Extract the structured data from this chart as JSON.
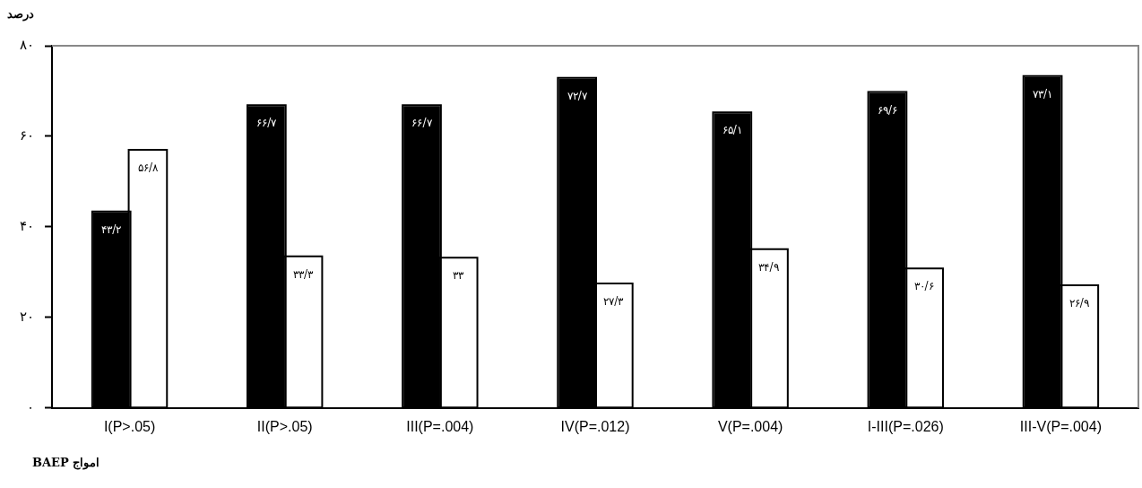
{
  "chart_data": {
    "type": "bar",
    "ylabel": "درصد",
    "xlabel": "امواج BAEP",
    "categories": [
      "I(P>.05)",
      "II(P>.05)",
      "III(P=.004)",
      "IV(P=.012)",
      "V(P=.004)",
      "I-III(P=.026)",
      "III-V(P=.004)"
    ],
    "series": [
      {
        "color": "#000000",
        "values": [
          43.2,
          66.7,
          66.7,
          72.7,
          65.1,
          69.6,
          73.1
        ],
        "value_labels": [
          "۴۳/۲",
          "۶۶/۷",
          "۶۶/۷",
          "۷۲/۷",
          "۶۵/۱",
          "۶۹/۶",
          "۷۳/۱"
        ]
      },
      {
        "color": "#ffffff",
        "values": [
          56.8,
          33.3,
          33,
          27.3,
          34.9,
          30.6,
          26.9
        ],
        "value_labels": [
          "۵۶/۸",
          "۳۳/۳",
          "۳۳",
          "۲۷/۳",
          "۳۴/۹",
          "۳۰/۶",
          "۲۶/۹"
        ]
      }
    ],
    "ylim": [
      0,
      80
    ],
    "yticks": [
      {
        "value": 0,
        "label": "۰"
      },
      {
        "value": 20,
        "label": "۲۰"
      },
      {
        "value": 40,
        "label": "۴۰"
      },
      {
        "value": 60,
        "label": "۶۰"
      },
      {
        "value": 80,
        "label": "۸۰"
      }
    ],
    "grid": false,
    "legend": false
  }
}
